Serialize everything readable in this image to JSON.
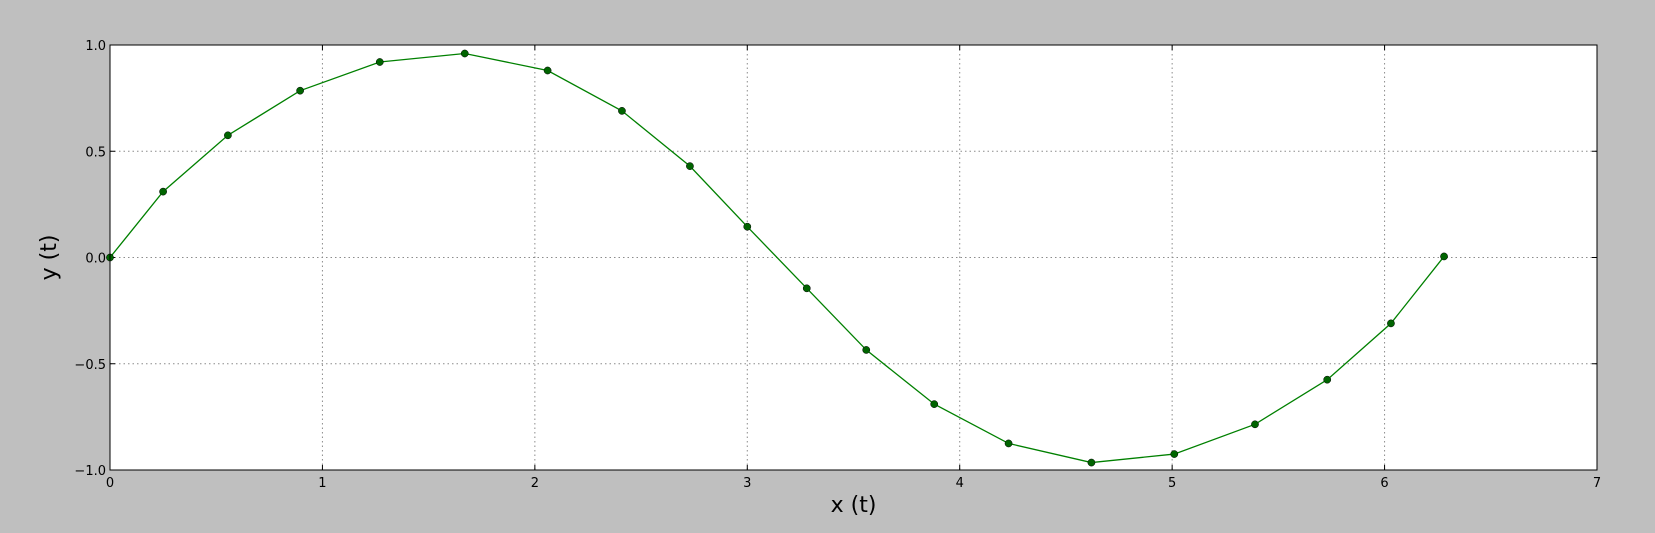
{
  "chart_data": {
    "type": "line",
    "xlabel": "x (t)",
    "ylabel": "y (t)",
    "xlim": [
      0,
      7
    ],
    "ylim": [
      -1.0,
      1.0
    ],
    "xticks": [
      0,
      1,
      2,
      3,
      4,
      5,
      6,
      7
    ],
    "xtick_labels": [
      "0",
      "1",
      "2",
      "3",
      "4",
      "5",
      "6",
      "7"
    ],
    "yticks": [
      -1.0,
      -0.5,
      0.0,
      0.5,
      1.0
    ],
    "ytick_labels": [
      "−1.0",
      "−0.5",
      "0.0",
      "0.5",
      "1.0"
    ],
    "grid": true,
    "colors": {
      "line": "#008000",
      "marker_fill": "#006400",
      "figure_background": "#bfbfbf",
      "plot_background": "#ffffff"
    },
    "series": [
      {
        "marker": "circle",
        "x": [
          0.0,
          0.25,
          0.555,
          0.895,
          1.27,
          1.67,
          2.06,
          2.41,
          2.73,
          3.0,
          3.28,
          3.56,
          3.88,
          4.23,
          4.62,
          5.01,
          5.39,
          5.73,
          6.03,
          6.28
        ],
        "y": [
          0.0,
          0.31,
          0.575,
          0.785,
          0.92,
          0.96,
          0.88,
          0.69,
          0.43,
          0.145,
          -0.145,
          -0.435,
          -0.69,
          -0.875,
          -0.965,
          -0.925,
          -0.785,
          -0.575,
          -0.31,
          0.005
        ]
      }
    ]
  }
}
